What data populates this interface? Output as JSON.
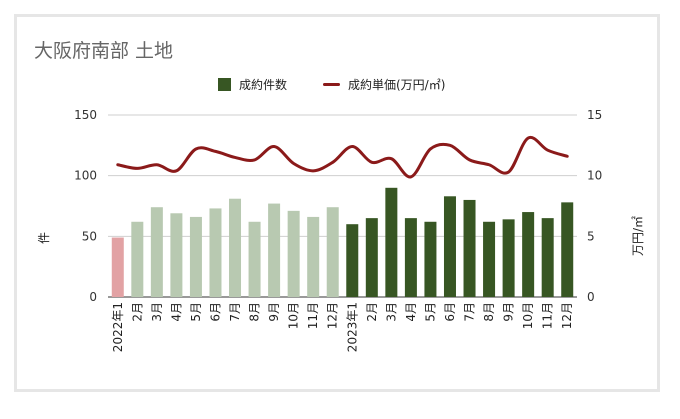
{
  "title": "大阪府南部 土地",
  "legend": {
    "bar_label": "成約件数",
    "line_label": "成約単価(万円/㎡)"
  },
  "colors": {
    "bar_2022": "#b8c9b1",
    "bar_2022_first": "#e2a2a4",
    "bar_2023": "#375623",
    "line": "#8b1a1a"
  },
  "chart_data": {
    "type": "bar",
    "title": "大阪府南部 土地",
    "categories": [
      "2022年1",
      "2月",
      "3月",
      "4月",
      "5月",
      "6月",
      "7月",
      "8月",
      "9月",
      "10月",
      "11月",
      "12月",
      "2023年1",
      "2月",
      "3月",
      "4月",
      "5月",
      "6月",
      "7月",
      "8月",
      "9月",
      "10月",
      "11月",
      "12月"
    ],
    "series": [
      {
        "name": "成約件数",
        "axis": "left",
        "kind": "bar",
        "values": [
          49,
          62,
          74,
          69,
          66,
          73,
          81,
          62,
          77,
          71,
          66,
          74,
          60,
          65,
          90,
          65,
          62,
          83,
          80,
          62,
          64,
          70,
          65,
          78
        ]
      },
      {
        "name": "成約単価(万円/㎡)",
        "axis": "right",
        "kind": "line",
        "values": [
          10.9,
          10.6,
          10.9,
          10.4,
          12.2,
          12.0,
          11.5,
          11.3,
          12.4,
          11.0,
          10.4,
          11.1,
          12.4,
          11.1,
          11.4,
          9.9,
          12.2,
          12.5,
          11.3,
          10.9,
          10.3,
          13.1,
          12.1,
          11.6
        ]
      }
    ],
    "ylabel": "件",
    "ylim": [
      0,
      150
    ],
    "yticks": [
      0,
      50,
      100,
      150
    ],
    "y2label": "万円/㎡",
    "y2lim": [
      0,
      15
    ],
    "y2ticks": [
      0,
      5,
      10,
      15
    ],
    "grid": true,
    "legend_position": "top-center"
  }
}
